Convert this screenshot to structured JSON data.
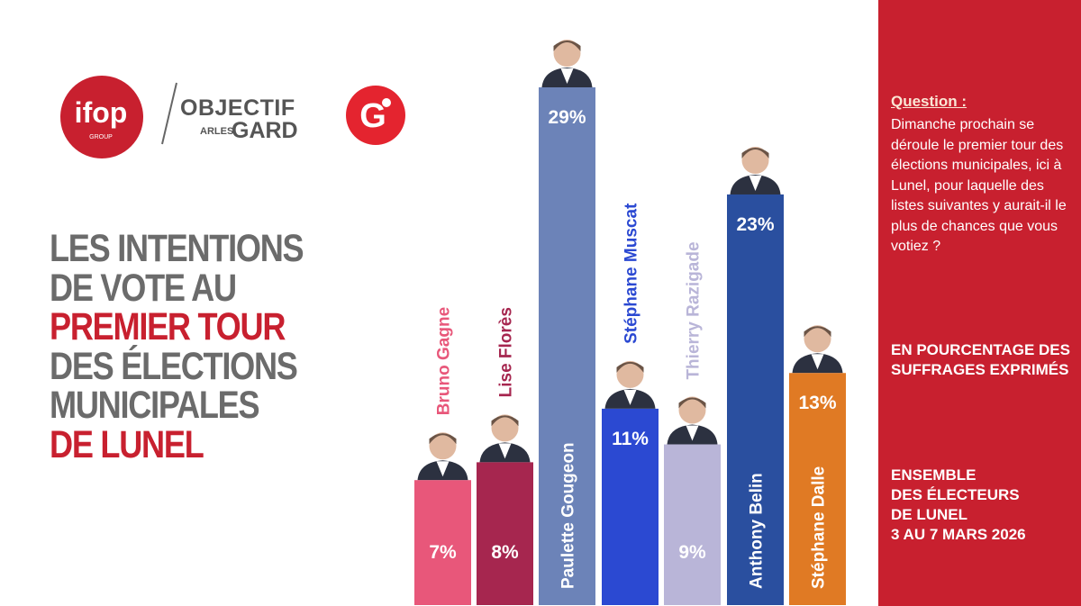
{
  "brand": {
    "ifop": "ifop",
    "ifop_sub": "GROUP",
    "og_line1": "OBJECTIF",
    "og_arles": "ARLES",
    "og_gard": "GARD",
    "g_letter": "G",
    "accent": "#c8202f"
  },
  "headline": {
    "line1": "LES INTENTIONS",
    "line2": "DE VOTE AU",
    "line3": "PREMIER TOUR",
    "line4": "DES ÉLECTIONS",
    "line5": "MUNICIPALES",
    "line6": "DE LUNEL"
  },
  "sidebar": {
    "question_title": "Question :",
    "question_text": "Dimanche prochain se déroule le premier tour des élections municipales, ici à Lunel, pour laquelle des listes suivantes y aurait-il le plus de chances que vous votiez ?",
    "mode": "EN POURCENTAGE DES SUFFRAGES EXPRIMÉS",
    "sample_1": "ENSEMBLE",
    "sample_2": "DES ÉLECTEURS",
    "sample_3": "DE LUNEL",
    "sample_4": "3 AU 7 MARS 2026"
  },
  "chart_data": {
    "type": "bar",
    "title": "LES INTENTIONS DE VOTE AU PREMIER TOUR DES ÉLECTIONS MUNICIPALES DE LUNEL",
    "categories": [
      "Bruno Gagne",
      "Lise Florès",
      "Paulette Gougeon",
      "Stéphane Muscat",
      "Thierry Razigade",
      "Anthony Belin",
      "Stéphane Dalle"
    ],
    "values": [
      7,
      8,
      29,
      11,
      9,
      23,
      13
    ],
    "value_labels": [
      "7%",
      "8%",
      "29%",
      "11%",
      "9%",
      "23%",
      "13%"
    ],
    "colors": [
      "#e8577a",
      "#a6264f",
      "#6c83b8",
      "#2b49d2",
      "#b9b5d8",
      "#2a4f9f",
      "#e07a24"
    ],
    "name_colors": [
      "#e8577a",
      "#a6264f",
      "#ffffff",
      "#2b49d2",
      "#b9b5d8",
      "#ffffff",
      "#ffffff"
    ],
    "name_inside_bar": [
      false,
      false,
      true,
      false,
      false,
      true,
      true
    ],
    "ylim": [
      0,
      29
    ],
    "grid": false,
    "legend": "none"
  }
}
